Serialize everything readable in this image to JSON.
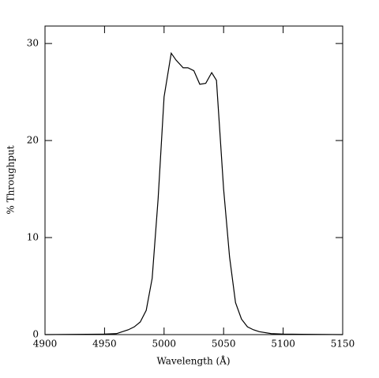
{
  "chart_data": {
    "type": "line",
    "x_label": "Wavelength (Å)",
    "y_label": "% Throughput",
    "x": [
      4900,
      4950,
      4960,
      4965,
      4970,
      4975,
      4980,
      4985,
      4990,
      4995,
      5000,
      5006,
      5010,
      5016,
      5020,
      5025,
      5030,
      5035,
      5040,
      5044,
      5050,
      5055,
      5060,
      5065,
      5070,
      5075,
      5080,
      5090,
      5100,
      5150
    ],
    "series": [
      {
        "color": "#000000",
        "values": [
          0,
          0.05,
          0.1,
          0.3,
          0.5,
          0.8,
          1.3,
          2.5,
          5.8,
          14,
          24.5,
          29,
          28.3,
          27.5,
          27.5,
          27.2,
          25.8,
          25.9,
          27,
          26.2,
          15,
          8,
          3.3,
          1.6,
          0.8,
          0.5,
          0.3,
          0.1,
          0.05,
          0
        ]
      }
    ],
    "xlim": [
      4900,
      5150
    ],
    "ylim": [
      0,
      31.8
    ],
    "xticks": [
      4900,
      4950,
      5000,
      5050,
      5100,
      5150
    ],
    "yticks": [
      0,
      10,
      20,
      30
    ],
    "grid": false
  }
}
